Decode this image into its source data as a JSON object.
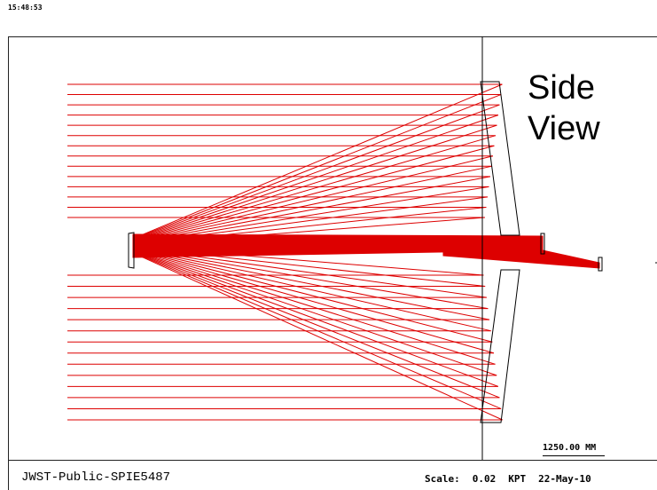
{
  "header": {
    "time": "15:48:53"
  },
  "diagram": {
    "view_title_line1": "Side",
    "view_title_line2": "View",
    "scale_bar_label": "1250.00 MM",
    "ray_color": "#dd0000",
    "outline_color": "#000000"
  },
  "footer": {
    "project": "JWST-Public-SPIE5487",
    "scale_label": "Scale:",
    "scale_value": "0.02",
    "units": "KPT",
    "date": "22-May-10"
  }
}
